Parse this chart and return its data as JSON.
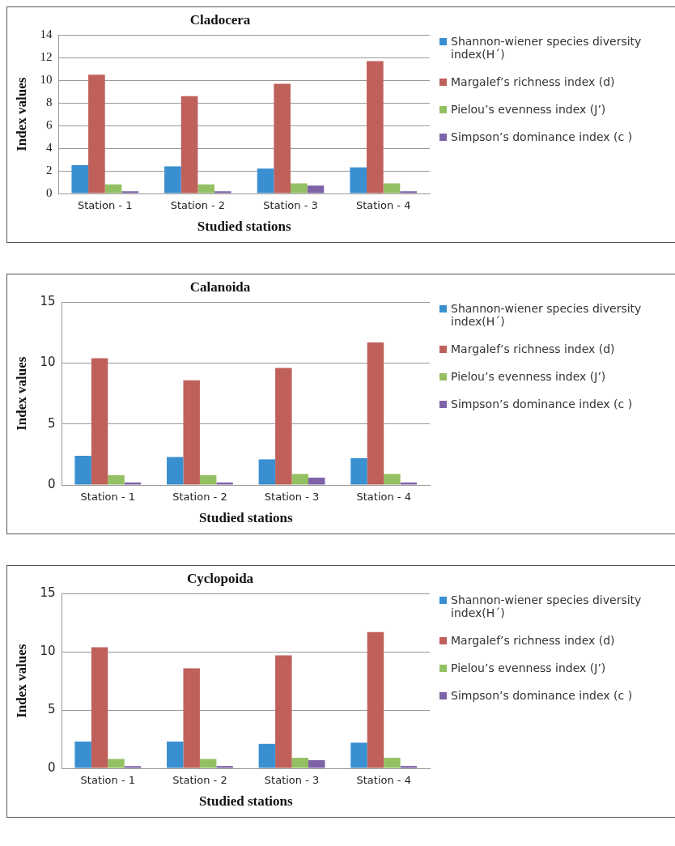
{
  "chart_data": [
    {
      "type": "bar",
      "title": "Cladocera",
      "xlabel": "Studied stations",
      "ylabel": "Index values",
      "categories": [
        "Station - 1",
        "Station - 2",
        "Station - 3",
        "Station - 4"
      ],
      "series": [
        {
          "name": "Shannon-wiener species diversity index(H´)",
          "color": "#3a8fd0",
          "values": [
            2.5,
            2.4,
            2.2,
            2.3
          ]
        },
        {
          "name": "Margalef’s richness index (d)",
          "color": "#c0605a",
          "values": [
            10.5,
            8.6,
            9.7,
            11.7
          ]
        },
        {
          "name": "Pielou’s evenness index (J’)",
          "color": "#93c062",
          "values": [
            0.8,
            0.8,
            0.9,
            0.9
          ]
        },
        {
          "name": "Simpson’s dominance index (c )",
          "color": "#7e63a8",
          "values": [
            0.2,
            0.2,
            0.7,
            0.2
          ]
        }
      ],
      "ylim": [
        0,
        14
      ],
      "yticks": [
        0,
        2,
        4,
        6,
        8,
        10,
        12,
        14
      ],
      "grid": "y",
      "legend": "right"
    },
    {
      "type": "bar",
      "title": "Calanoida",
      "xlabel": "Studied stations",
      "ylabel": "Index values",
      "categories": [
        "Station - 1",
        "Station - 2",
        "Station - 3",
        "Station - 4"
      ],
      "series": [
        {
          "name": "Shannon-wiener species diversity index(H´)",
          "color": "#3a8fd0",
          "values": [
            2.4,
            2.3,
            2.1,
            2.2
          ]
        },
        {
          "name": "Margalef’s richness index (d)",
          "color": "#c0605a",
          "values": [
            10.4,
            8.6,
            9.6,
            11.7
          ]
        },
        {
          "name": "Pielou’s evenness index (J’)",
          "color": "#93c062",
          "values": [
            0.8,
            0.8,
            0.9,
            0.9
          ]
        },
        {
          "name": "Simpson’s dominance index (c )",
          "color": "#7e63a8",
          "values": [
            0.2,
            0.2,
            0.6,
            0.2
          ]
        }
      ],
      "ylim": [
        0,
        15
      ],
      "yticks": [
        0,
        5,
        10,
        15
      ],
      "grid": "y",
      "legend": "right"
    },
    {
      "type": "bar",
      "title": "Cyclopoida",
      "xlabel": "Studied stations",
      "ylabel": "Index values",
      "categories": [
        "Station - 1",
        "Station - 2",
        "Station - 3",
        "Station - 4"
      ],
      "series": [
        {
          "name": "Shannon-wiener species diversity index(H´)",
          "color": "#3a8fd0",
          "values": [
            2.3,
            2.3,
            2.1,
            2.2
          ]
        },
        {
          "name": "Margalef’s richness index (d)",
          "color": "#c0605a",
          "values": [
            10.4,
            8.6,
            9.7,
            11.7
          ]
        },
        {
          "name": "Pielou’s evenness index (J’)",
          "color": "#93c062",
          "values": [
            0.8,
            0.8,
            0.9,
            0.9
          ]
        },
        {
          "name": "Simpson’s dominance index (c )",
          "color": "#7e63a8",
          "values": [
            0.2,
            0.2,
            0.7,
            0.2
          ]
        }
      ],
      "ylim": [
        0,
        15
      ],
      "yticks": [
        0,
        5,
        10,
        15
      ],
      "grid": "y",
      "legend": "right"
    }
  ]
}
